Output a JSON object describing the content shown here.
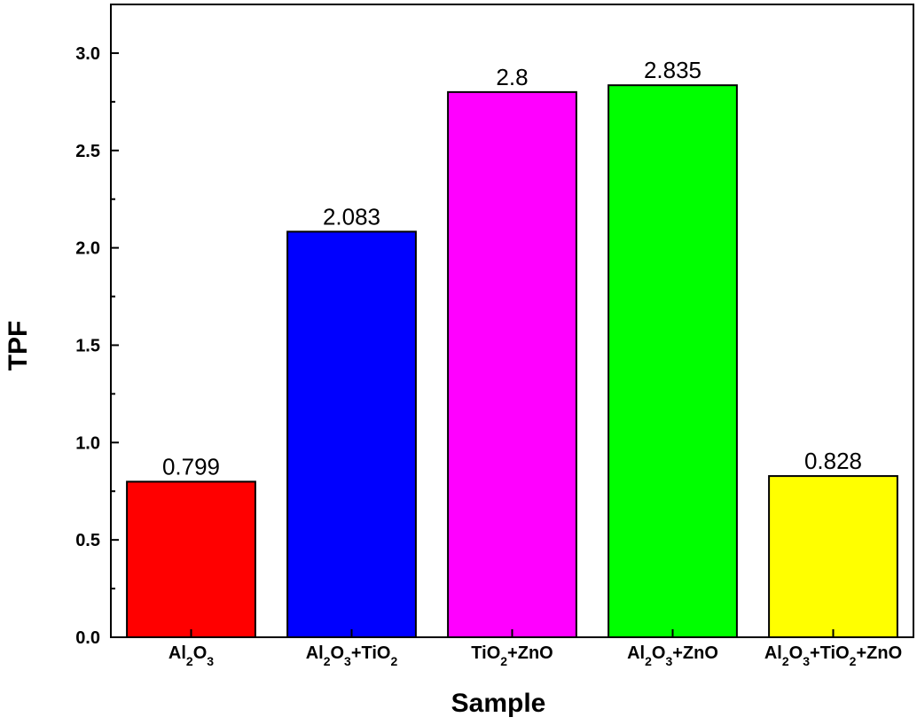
{
  "chart_data": {
    "type": "bar",
    "title": "",
    "xlabel": "Sample",
    "ylabel": "TPF",
    "ylim": [
      0,
      3.25
    ],
    "yticks": [
      0.0,
      0.5,
      1.0,
      1.5,
      2.0,
      2.5,
      3.0
    ],
    "ytick_labels": [
      "0.0",
      "0.5",
      "1.0",
      "1.5",
      "2.0",
      "2.5",
      "3.0"
    ],
    "categories": [
      [
        {
          "t": "Al"
        },
        {
          "t": "2",
          "sub": true
        },
        {
          "t": "O"
        },
        {
          "t": "3",
          "sub": true
        }
      ],
      [
        {
          "t": "Al"
        },
        {
          "t": "2",
          "sub": true
        },
        {
          "t": "O"
        },
        {
          "t": "3",
          "sub": true
        },
        {
          "t": "+TiO"
        },
        {
          "t": "2",
          "sub": true
        }
      ],
      [
        {
          "t": "TiO"
        },
        {
          "t": "2",
          "sub": true
        },
        {
          "t": "+ZnO"
        }
      ],
      [
        {
          "t": "Al"
        },
        {
          "t": "2",
          "sub": true
        },
        {
          "t": "O"
        },
        {
          "t": "3",
          "sub": true
        },
        {
          "t": "+ZnO"
        }
      ],
      [
        {
          "t": "Al"
        },
        {
          "t": "2",
          "sub": true
        },
        {
          "t": "O"
        },
        {
          "t": "3",
          "sub": true
        },
        {
          "t": "+TiO"
        },
        {
          "t": "2",
          "sub": true
        },
        {
          "t": "+ZnO"
        }
      ]
    ],
    "values": [
      0.799,
      2.083,
      2.8,
      2.835,
      0.828
    ],
    "data_labels": [
      "0.799",
      "2.083",
      "2.8",
      "2.835",
      "0.828"
    ],
    "colors": [
      "#ff0000",
      "#0000ff",
      "#ff00ff",
      "#00ff00",
      "#ffff00"
    ],
    "grid": false,
    "legend": "none"
  }
}
